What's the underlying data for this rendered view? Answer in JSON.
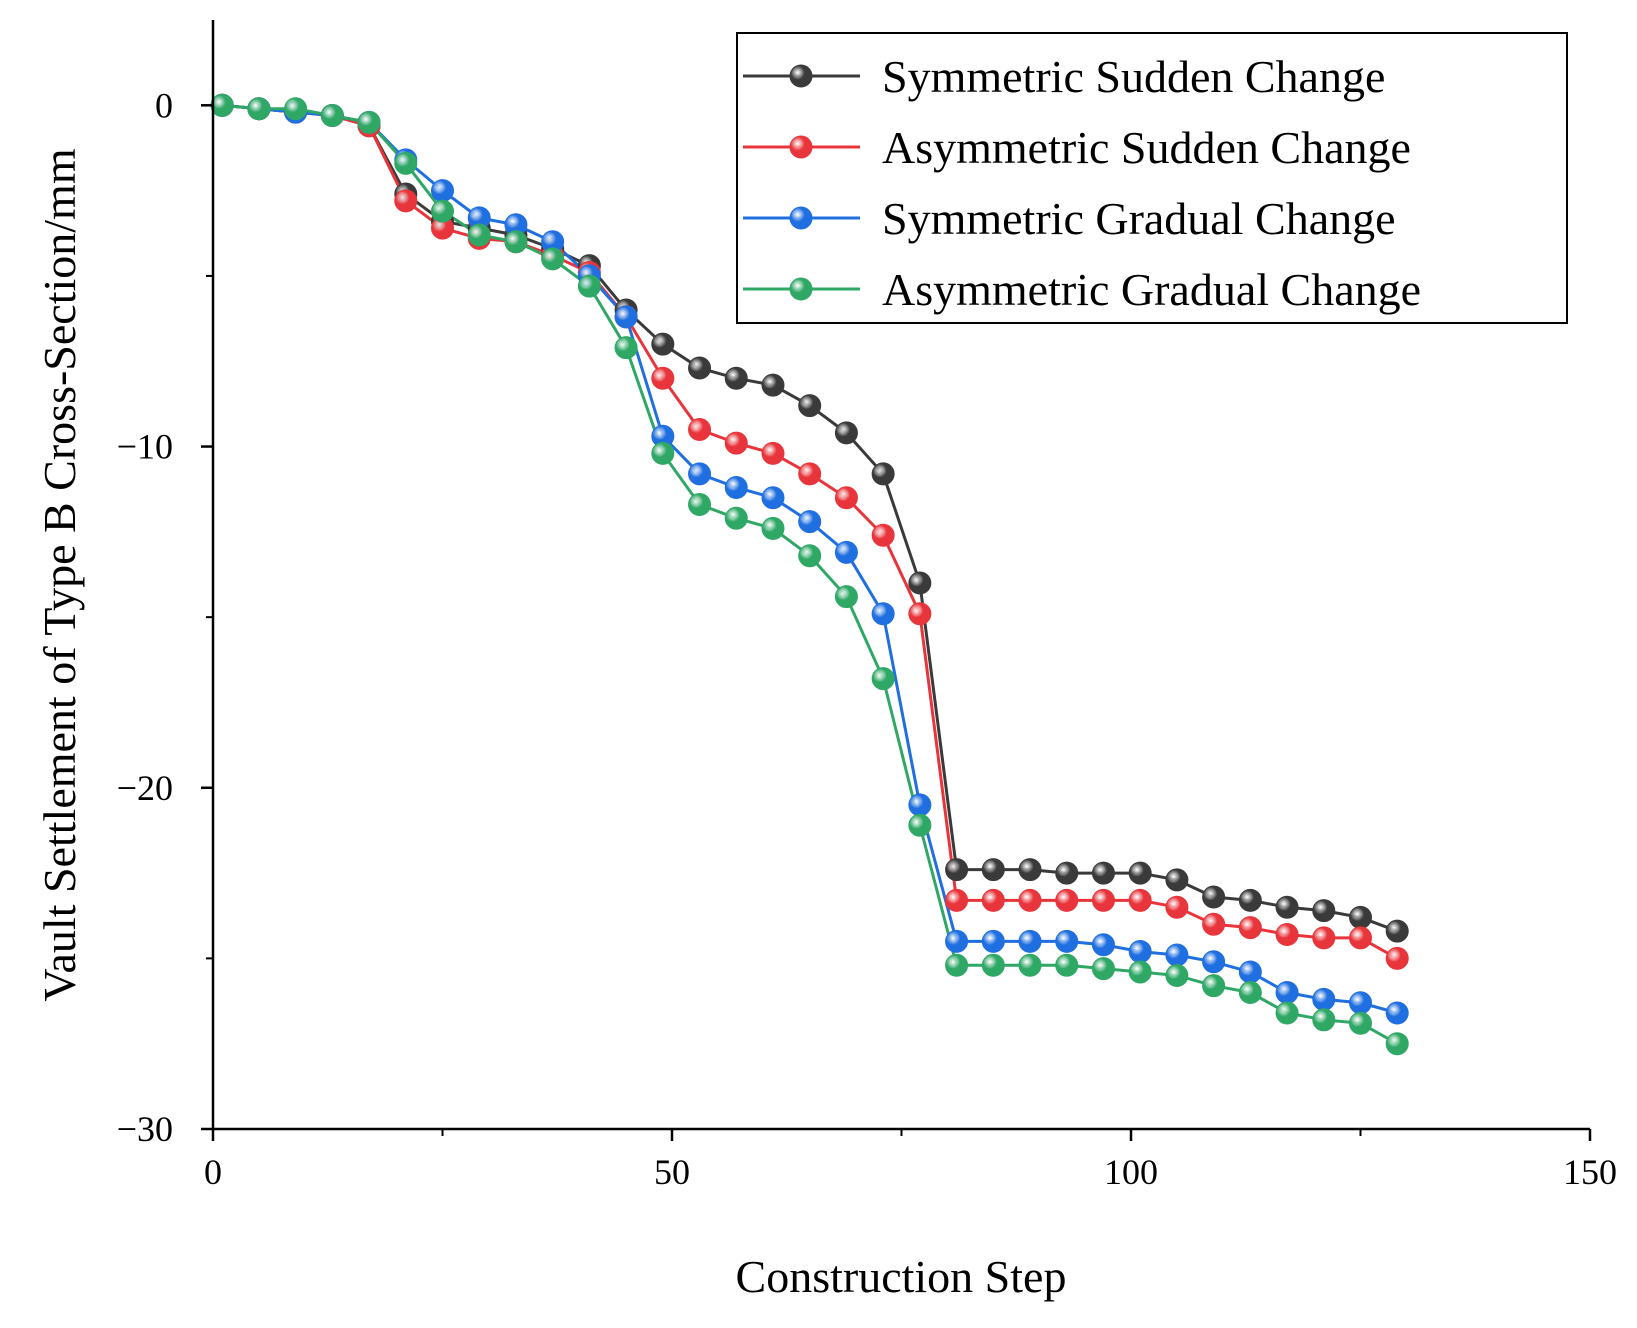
{
  "chart_data": {
    "type": "line",
    "title": "",
    "xlabel": "Construction Step",
    "ylabel": "Vault Settlement of Type B Cross-Section/mm",
    "xlim": [
      0,
      150
    ],
    "ylim": [
      -30,
      2.5
    ],
    "xticks": [
      0,
      50,
      100,
      150
    ],
    "yticks": [
      0,
      -10,
      -20,
      -30
    ],
    "xtick_labels": [
      "0",
      "50",
      "100",
      "150"
    ],
    "ytick_labels": [
      "0",
      "−10",
      "−20",
      "−30"
    ],
    "grid": false,
    "legend_position": "top-right",
    "x": [
      1,
      5,
      9,
      13,
      17,
      21,
      25,
      29,
      33,
      37,
      41,
      45,
      49,
      53,
      57,
      61,
      65,
      69,
      73,
      77,
      81,
      85,
      89,
      93,
      97,
      101,
      105,
      109,
      113,
      117,
      121,
      125,
      129
    ],
    "series": [
      {
        "name": "Symmetric Sudden Change",
        "color": "#3a3a3a",
        "values": [
          0,
          -0.1,
          -0.2,
          -0.3,
          -0.6,
          -2.6,
          -3.4,
          -3.6,
          -3.8,
          -4.2,
          -4.7,
          -6.0,
          -7.0,
          -7.7,
          -8.0,
          -8.2,
          -8.8,
          -9.6,
          -10.8,
          -14.0,
          -22.4,
          -22.4,
          -22.4,
          -22.5,
          -22.5,
          -22.5,
          -22.7,
          -23.2,
          -23.3,
          -23.5,
          -23.6,
          -23.8,
          -24.2
        ]
      },
      {
        "name": "Asymmetric Sudden Change",
        "color": "#e8353b",
        "values": [
          0,
          -0.1,
          -0.2,
          -0.3,
          -0.6,
          -2.8,
          -3.6,
          -3.9,
          -4.0,
          -4.4,
          -4.9,
          -6.2,
          -8.0,
          -9.5,
          -9.9,
          -10.2,
          -10.8,
          -11.5,
          -12.6,
          -14.9,
          -23.3,
          -23.3,
          -23.3,
          -23.3,
          -23.3,
          -23.3,
          -23.5,
          -24.0,
          -24.1,
          -24.3,
          -24.4,
          -24.4,
          -25.0
        ]
      },
      {
        "name": "Symmetric Gradual Change",
        "color": "#1f6fe0",
        "values": [
          0,
          -0.1,
          -0.2,
          -0.3,
          -0.5,
          -1.6,
          -2.5,
          -3.3,
          -3.5,
          -4.0,
          -5.0,
          -6.2,
          -9.7,
          -10.8,
          -11.2,
          -11.5,
          -12.2,
          -13.1,
          -14.9,
          -20.5,
          -24.5,
          -24.5,
          -24.5,
          -24.5,
          -24.6,
          -24.8,
          -24.9,
          -25.1,
          -25.4,
          -26.0,
          -26.2,
          -26.3,
          -26.6
        ]
      },
      {
        "name": "Asymmetric Gradual Change",
        "color": "#2fa866",
        "values": [
          0,
          -0.1,
          -0.1,
          -0.3,
          -0.5,
          -1.7,
          -3.1,
          -3.8,
          -4.0,
          -4.5,
          -5.3,
          -7.1,
          -10.2,
          -11.7,
          -12.1,
          -12.4,
          -13.2,
          -14.4,
          -16.8,
          -21.1,
          -25.2,
          -25.2,
          -25.2,
          -25.2,
          -25.3,
          -25.4,
          -25.5,
          -25.8,
          -26.0,
          -26.6,
          -26.8,
          -26.9,
          -27.5
        ]
      }
    ]
  }
}
